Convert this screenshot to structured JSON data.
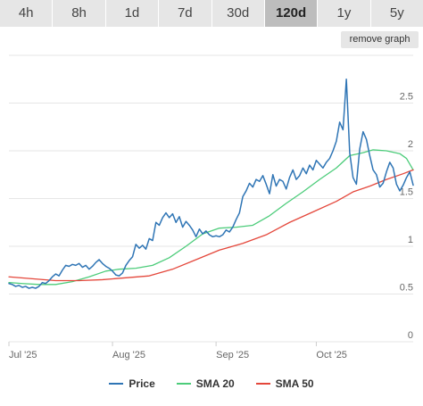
{
  "range_tabs": [
    {
      "label": "4h",
      "active": false
    },
    {
      "label": "8h",
      "active": false
    },
    {
      "label": "1d",
      "active": false
    },
    {
      "label": "7d",
      "active": false
    },
    {
      "label": "30d",
      "active": false
    },
    {
      "label": "120d",
      "active": true
    },
    {
      "label": "1y",
      "active": false
    },
    {
      "label": "5y",
      "active": false
    }
  ],
  "remove_graph_label": "remove graph",
  "colors": {
    "price": "#2f75b5",
    "sma20": "#4ccc7a",
    "sma50": "#e4473b",
    "grid": "#e6e6e6",
    "axis_text": "#666666"
  },
  "chart_data": {
    "type": "line",
    "x_axis": {
      "type": "date",
      "range": [
        "2025-07-01",
        "2025-10-30"
      ],
      "ticks": [
        {
          "date": "2025-07-01",
          "label": "Jul '25"
        },
        {
          "date": "2025-08-01",
          "label": "Aug '25"
        },
        {
          "date": "2025-09-01",
          "label": "Sep '25"
        },
        {
          "date": "2025-10-01",
          "label": "Oct '25"
        }
      ]
    },
    "y_axis": {
      "range": [
        0,
        3
      ],
      "position": "right",
      "ticks": [
        {
          "value": 0,
          "label": "0"
        },
        {
          "value": 0.5,
          "label": "0.5"
        },
        {
          "value": 1,
          "label": "1"
        },
        {
          "value": 1.5,
          "label": "1.5"
        },
        {
          "value": 2,
          "label": "2"
        },
        {
          "value": 2.5,
          "label": "2.5"
        }
      ]
    },
    "grid": true,
    "legend_position": "bottom",
    "series": [
      {
        "name": "Price",
        "color_key": "price",
        "points": [
          [
            "2025-07-01",
            0.61
          ],
          [
            "2025-07-02",
            0.6
          ],
          [
            "2025-07-03",
            0.58
          ],
          [
            "2025-07-04",
            0.59
          ],
          [
            "2025-07-05",
            0.57
          ],
          [
            "2025-07-06",
            0.58
          ],
          [
            "2025-07-07",
            0.56
          ],
          [
            "2025-07-08",
            0.57
          ],
          [
            "2025-07-09",
            0.56
          ],
          [
            "2025-07-10",
            0.58
          ],
          [
            "2025-07-11",
            0.62
          ],
          [
            "2025-07-12",
            0.61
          ],
          [
            "2025-07-13",
            0.64
          ],
          [
            "2025-07-14",
            0.68
          ],
          [
            "2025-07-15",
            0.71
          ],
          [
            "2025-07-16",
            0.69
          ],
          [
            "2025-07-17",
            0.75
          ],
          [
            "2025-07-18",
            0.8
          ],
          [
            "2025-07-19",
            0.79
          ],
          [
            "2025-07-20",
            0.81
          ],
          [
            "2025-07-21",
            0.8
          ],
          [
            "2025-07-22",
            0.82
          ],
          [
            "2025-07-23",
            0.78
          ],
          [
            "2025-07-24",
            0.8
          ],
          [
            "2025-07-25",
            0.76
          ],
          [
            "2025-07-26",
            0.79
          ],
          [
            "2025-07-27",
            0.83
          ],
          [
            "2025-07-28",
            0.86
          ],
          [
            "2025-07-29",
            0.82
          ],
          [
            "2025-07-30",
            0.79
          ],
          [
            "2025-07-31",
            0.77
          ],
          [
            "2025-08-01",
            0.74
          ],
          [
            "2025-08-02",
            0.7
          ],
          [
            "2025-08-03",
            0.69
          ],
          [
            "2025-08-04",
            0.72
          ],
          [
            "2025-08-05",
            0.8
          ],
          [
            "2025-08-06",
            0.85
          ],
          [
            "2025-08-07",
            0.89
          ],
          [
            "2025-08-08",
            1.02
          ],
          [
            "2025-08-09",
            0.98
          ],
          [
            "2025-08-10",
            1.01
          ],
          [
            "2025-08-11",
            0.97
          ],
          [
            "2025-08-12",
            1.08
          ],
          [
            "2025-08-13",
            1.06
          ],
          [
            "2025-08-14",
            1.25
          ],
          [
            "2025-08-15",
            1.22
          ],
          [
            "2025-08-16",
            1.3
          ],
          [
            "2025-08-17",
            1.35
          ],
          [
            "2025-08-18",
            1.3
          ],
          [
            "2025-08-19",
            1.34
          ],
          [
            "2025-08-20",
            1.25
          ],
          [
            "2025-08-21",
            1.31
          ],
          [
            "2025-08-22",
            1.2
          ],
          [
            "2025-08-23",
            1.26
          ],
          [
            "2025-08-24",
            1.22
          ],
          [
            "2025-08-25",
            1.17
          ],
          [
            "2025-08-26",
            1.1
          ],
          [
            "2025-08-27",
            1.18
          ],
          [
            "2025-08-28",
            1.13
          ],
          [
            "2025-08-29",
            1.16
          ],
          [
            "2025-08-30",
            1.12
          ],
          [
            "2025-08-31",
            1.1
          ],
          [
            "2025-09-01",
            1.11
          ],
          [
            "2025-09-02",
            1.1
          ],
          [
            "2025-09-03",
            1.12
          ],
          [
            "2025-09-04",
            1.17
          ],
          [
            "2025-09-05",
            1.15
          ],
          [
            "2025-09-06",
            1.2
          ],
          [
            "2025-09-07",
            1.28
          ],
          [
            "2025-09-08",
            1.35
          ],
          [
            "2025-09-09",
            1.52
          ],
          [
            "2025-09-10",
            1.58
          ],
          [
            "2025-09-11",
            1.66
          ],
          [
            "2025-09-12",
            1.62
          ],
          [
            "2025-09-13",
            1.7
          ],
          [
            "2025-09-14",
            1.68
          ],
          [
            "2025-09-15",
            1.74
          ],
          [
            "2025-09-16",
            1.65
          ],
          [
            "2025-09-17",
            1.55
          ],
          [
            "2025-09-18",
            1.75
          ],
          [
            "2025-09-19",
            1.63
          ],
          [
            "2025-09-20",
            1.7
          ],
          [
            "2025-09-21",
            1.68
          ],
          [
            "2025-09-22",
            1.6
          ],
          [
            "2025-09-23",
            1.72
          ],
          [
            "2025-09-24",
            1.8
          ],
          [
            "2025-09-25",
            1.7
          ],
          [
            "2025-09-26",
            1.74
          ],
          [
            "2025-09-27",
            1.82
          ],
          [
            "2025-09-28",
            1.76
          ],
          [
            "2025-09-29",
            1.85
          ],
          [
            "2025-09-30",
            1.8
          ],
          [
            "2025-10-01",
            1.9
          ],
          [
            "2025-10-02",
            1.86
          ],
          [
            "2025-10-03",
            1.82
          ],
          [
            "2025-10-04",
            1.88
          ],
          [
            "2025-10-05",
            1.92
          ],
          [
            "2025-10-06",
            2.0
          ],
          [
            "2025-10-07",
            2.1
          ],
          [
            "2025-10-08",
            2.3
          ],
          [
            "2025-10-09",
            2.22
          ],
          [
            "2025-10-10",
            2.75
          ],
          [
            "2025-10-11",
            1.98
          ],
          [
            "2025-10-12",
            1.72
          ],
          [
            "2025-10-13",
            1.65
          ],
          [
            "2025-10-14",
            2.02
          ],
          [
            "2025-10-15",
            2.2
          ],
          [
            "2025-10-16",
            2.12
          ],
          [
            "2025-10-17",
            1.95
          ],
          [
            "2025-10-18",
            1.8
          ],
          [
            "2025-10-19",
            1.75
          ],
          [
            "2025-10-20",
            1.62
          ],
          [
            "2025-10-21",
            1.66
          ],
          [
            "2025-10-22",
            1.78
          ],
          [
            "2025-10-23",
            1.88
          ],
          [
            "2025-10-24",
            1.82
          ],
          [
            "2025-10-25",
            1.65
          ],
          [
            "2025-10-26",
            1.58
          ],
          [
            "2025-10-27",
            1.64
          ],
          [
            "2025-10-28",
            1.72
          ],
          [
            "2025-10-29",
            1.78
          ],
          [
            "2025-10-30",
            1.64
          ]
        ]
      },
      {
        "name": "SMA 20",
        "color_key": "sma20",
        "points": [
          [
            "2025-07-01",
            0.62
          ],
          [
            "2025-07-05",
            0.61
          ],
          [
            "2025-07-10",
            0.6
          ],
          [
            "2025-07-15",
            0.6
          ],
          [
            "2025-07-20",
            0.63
          ],
          [
            "2025-07-25",
            0.68
          ],
          [
            "2025-07-30",
            0.74
          ],
          [
            "2025-08-03",
            0.76
          ],
          [
            "2025-08-08",
            0.77
          ],
          [
            "2025-08-13",
            0.8
          ],
          [
            "2025-08-18",
            0.88
          ],
          [
            "2025-08-23",
            1.0
          ],
          [
            "2025-08-28",
            1.13
          ],
          [
            "2025-09-02",
            1.19
          ],
          [
            "2025-09-07",
            1.2
          ],
          [
            "2025-09-12",
            1.22
          ],
          [
            "2025-09-17",
            1.32
          ],
          [
            "2025-09-22",
            1.45
          ],
          [
            "2025-09-27",
            1.57
          ],
          [
            "2025-10-02",
            1.7
          ],
          [
            "2025-10-07",
            1.82
          ],
          [
            "2025-10-11",
            1.95
          ],
          [
            "2025-10-15",
            1.98
          ],
          [
            "2025-10-18",
            2.01
          ],
          [
            "2025-10-22",
            2.0
          ],
          [
            "2025-10-26",
            1.97
          ],
          [
            "2025-10-28",
            1.92
          ],
          [
            "2025-10-30",
            1.8
          ]
        ]
      },
      {
        "name": "SMA 50",
        "color_key": "sma50",
        "points": [
          [
            "2025-07-01",
            0.68
          ],
          [
            "2025-07-08",
            0.66
          ],
          [
            "2025-07-15",
            0.64
          ],
          [
            "2025-07-22",
            0.64
          ],
          [
            "2025-07-29",
            0.65
          ],
          [
            "2025-08-05",
            0.67
          ],
          [
            "2025-08-12",
            0.69
          ],
          [
            "2025-08-19",
            0.76
          ],
          [
            "2025-08-26",
            0.86
          ],
          [
            "2025-09-02",
            0.96
          ],
          [
            "2025-09-09",
            1.03
          ],
          [
            "2025-09-16",
            1.12
          ],
          [
            "2025-09-23",
            1.25
          ],
          [
            "2025-09-30",
            1.36
          ],
          [
            "2025-10-07",
            1.47
          ],
          [
            "2025-10-12",
            1.57
          ],
          [
            "2025-10-17",
            1.63
          ],
          [
            "2025-10-22",
            1.7
          ],
          [
            "2025-10-27",
            1.76
          ],
          [
            "2025-10-30",
            1.8
          ]
        ]
      }
    ]
  }
}
